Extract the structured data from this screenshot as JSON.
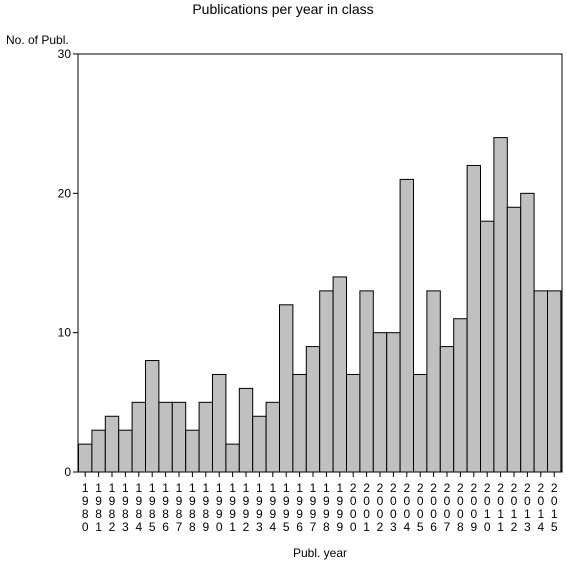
{
  "chart_data": {
    "type": "bar",
    "title": "Publications per year in class",
    "xlabel": "Publ. year",
    "ylabel": "No. of Publ.",
    "ylim": [
      0,
      30
    ],
    "yticks": [
      "0",
      "10",
      "20",
      "30"
    ],
    "grid": false,
    "categories": [
      "1980",
      "1981",
      "1982",
      "1983",
      "1984",
      "1985",
      "1986",
      "1987",
      "1988",
      "1989",
      "1990",
      "1991",
      "1992",
      "1993",
      "1994",
      "1995",
      "1996",
      "1997",
      "1998",
      "1999",
      "2000",
      "2001",
      "2002",
      "2003",
      "2004",
      "2005",
      "2006",
      "2007",
      "2008",
      "2009",
      "2010",
      "2011",
      "2012",
      "2013",
      "2014",
      "2015"
    ],
    "values": [
      2,
      3,
      4,
      3,
      5,
      8,
      5,
      5,
      3,
      5,
      7,
      2,
      6,
      4,
      5,
      12,
      7,
      9,
      13,
      14,
      7,
      13,
      10,
      10,
      21,
      7,
      13,
      9,
      11,
      22,
      18,
      24,
      19,
      20,
      13,
      13
    ],
    "colors": {
      "bar_fill": "#c0c0c0",
      "bar_stroke": "#000000",
      "axis": "#000000"
    }
  }
}
